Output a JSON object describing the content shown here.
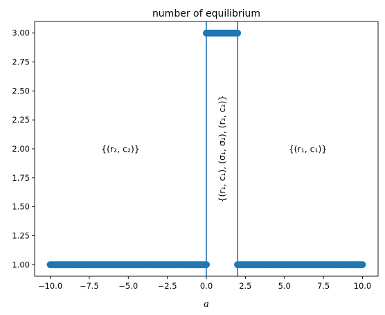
{
  "chart_data": {
    "type": "scatter",
    "title": "number of equilibrium",
    "xlabel": "a",
    "ylabel": "",
    "xlim": [
      -11.0,
      11.0
    ],
    "ylim": [
      0.9,
      3.1
    ],
    "xticks": [
      -10.0,
      -7.5,
      -5.0,
      -2.5,
      0.0,
      2.5,
      5.0,
      7.5,
      10.0
    ],
    "xtick_labels": [
      "−10.0",
      "−7.5",
      "−5.0",
      "−2.5",
      "0.0",
      "2.5",
      "5.0",
      "7.5",
      "10.0"
    ],
    "yticks": [
      1.0,
      1.25,
      1.5,
      1.75,
      2.0,
      2.25,
      2.5,
      2.75,
      3.0
    ],
    "ytick_labels": [
      "1.00",
      "1.25",
      "1.50",
      "1.75",
      "2.00",
      "2.25",
      "2.50",
      "2.75",
      "3.00"
    ],
    "grid": false,
    "series": [
      {
        "color": "#1f77b4",
        "segments": [
          {
            "x_start": -10.0,
            "x_end": 0.0,
            "y": 1,
            "points": 100
          },
          {
            "x_start": 0.0,
            "x_end": 2.0,
            "y": 3,
            "points": 20
          },
          {
            "x_start": 2.0,
            "x_end": 10.0,
            "y": 1,
            "points": 80
          }
        ]
      }
    ],
    "vertical_lines": [
      {
        "x": 0.0,
        "color": "#1f77b4"
      },
      {
        "x": 2.0,
        "color": "#1f77b4"
      }
    ],
    "annotations": [
      {
        "text": "{(r₂, c₂)}",
        "x": -5.5,
        "y": 2.0,
        "rotation": 0
      },
      {
        "text": "{(r₁, c₁), (σ₁, σ₂), (r₂, c₂)}",
        "x": 1.0,
        "y": 2.0,
        "rotation": -90
      },
      {
        "text": "{(r₁, c₁)}",
        "x": 6.5,
        "y": 2.0,
        "rotation": 0
      }
    ]
  }
}
